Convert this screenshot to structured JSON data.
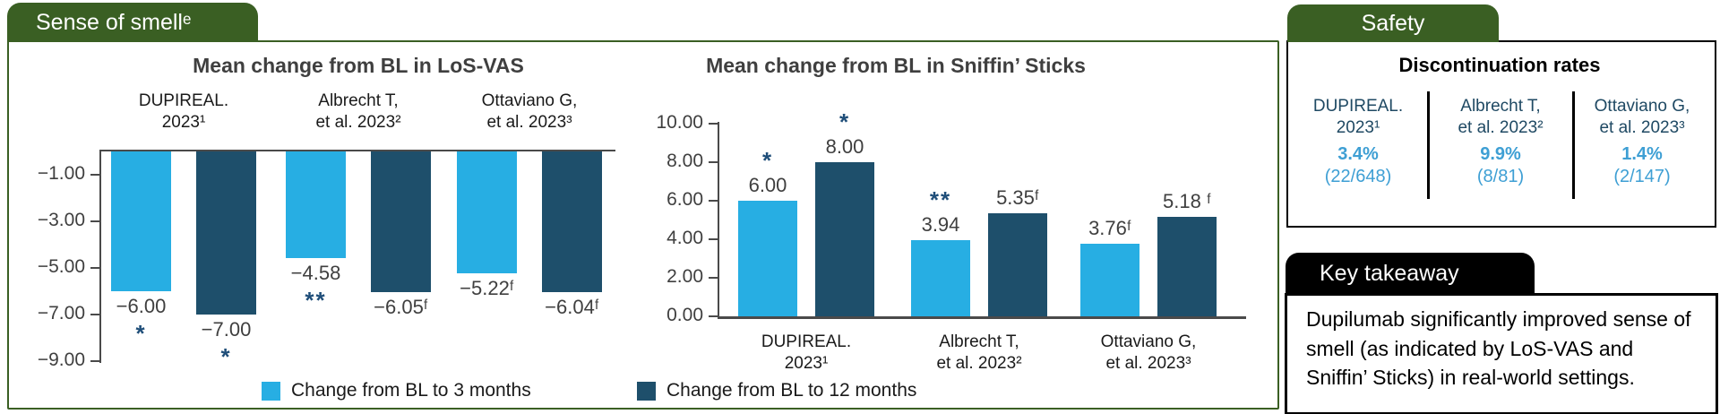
{
  "colors": {
    "light_blue": "#27AEE3",
    "dark_navy": "#1E4F6B",
    "green": "#3A5F23",
    "navy_text": "#1F4E79",
    "blue_text": "#3E9FD4",
    "label_gray": "#3F3F3F"
  },
  "smell_panel": {
    "tab_label": "Sense of smellᵉ"
  },
  "legend": {
    "items": [
      {
        "label": "Change from BL to 3 months",
        "series": "light"
      },
      {
        "label": "Change from BL to 12 months",
        "series": "dark"
      }
    ]
  },
  "chart_data": [
    {
      "type": "bar",
      "title": "Mean change from BL in LoS-VAS",
      "categories": [
        "DUPIREAL.\n2023¹",
        "Albrecht T,\net al. 2023²",
        "Ottaviano G,\net al. 2023³"
      ],
      "series": [
        {
          "name": "Change from BL to 3 months",
          "values": [
            -6.0,
            -4.58,
            -5.22
          ],
          "labels": [
            "−6.00",
            "−4.58",
            "−5.22ᶠ"
          ],
          "markers": [
            "*",
            "**",
            ""
          ]
        },
        {
          "name": "Change from BL to 12 months",
          "values": [
            -7.0,
            -6.05,
            -6.04
          ],
          "labels": [
            "−7.00",
            "−6.05ᶠ",
            "−6.04ᶠ"
          ],
          "markers": [
            "*",
            "",
            ""
          ]
        }
      ],
      "ylim": [
        -9,
        0
      ],
      "yticks": [
        -1,
        -3,
        -5,
        -7,
        -9
      ],
      "ytick_labels": [
        "−1.00",
        "−3.00",
        "−5.00",
        "−7.00",
        "−9.00"
      ],
      "grid": false,
      "category_labels_position": "top",
      "legend_position": "bottom"
    },
    {
      "type": "bar",
      "title": "Mean change from BL in Sniffin’ Sticks",
      "categories": [
        "DUPIREAL.\n2023¹",
        "Albrecht T,\net al. 2023²",
        "Ottaviano G,\net al. 2023³"
      ],
      "series": [
        {
          "name": "Change from BL to 3 months",
          "values": [
            6.0,
            3.94,
            3.76
          ],
          "labels": [
            "6.00",
            "3.94",
            "3.76ᶠ"
          ],
          "markers": [
            "*",
            "**",
            ""
          ]
        },
        {
          "name": "Change from BL to 12 months",
          "values": [
            8.0,
            5.35,
            5.18
          ],
          "labels": [
            "8.00",
            "5.35ᶠ",
            "5.18 ᶠ"
          ],
          "markers": [
            "*",
            "",
            ""
          ]
        }
      ],
      "ylim": [
        0,
        10
      ],
      "yticks": [
        10,
        8,
        6,
        4,
        2,
        0
      ],
      "ytick_labels": [
        "10.00",
        "8.00",
        "6.00",
        "4.00",
        "2.00",
        "0.00"
      ],
      "grid": false,
      "category_labels_position": "bottom",
      "legend_position": "bottom"
    }
  ],
  "safety_panel": {
    "tab_label": "Safety",
    "title": "Discontinuation rates",
    "columns": [
      {
        "study": "DUPIREAL.\n2023¹",
        "rate": "3.4%",
        "count": "(22/648)"
      },
      {
        "study": "Albrecht T,\net al. 2023²",
        "rate": "9.9%",
        "count": "(8/81)"
      },
      {
        "study": "Ottaviano G,\net al. 2023³",
        "rate": "1.4%",
        "count": "(2/147)"
      }
    ]
  },
  "takeaway_panel": {
    "tab_label": "Key takeaway",
    "text": "Dupilumab significantly improved sense of smell (as indicated by LoS-VAS and Sniffin’ Sticks) in real-world settings."
  }
}
